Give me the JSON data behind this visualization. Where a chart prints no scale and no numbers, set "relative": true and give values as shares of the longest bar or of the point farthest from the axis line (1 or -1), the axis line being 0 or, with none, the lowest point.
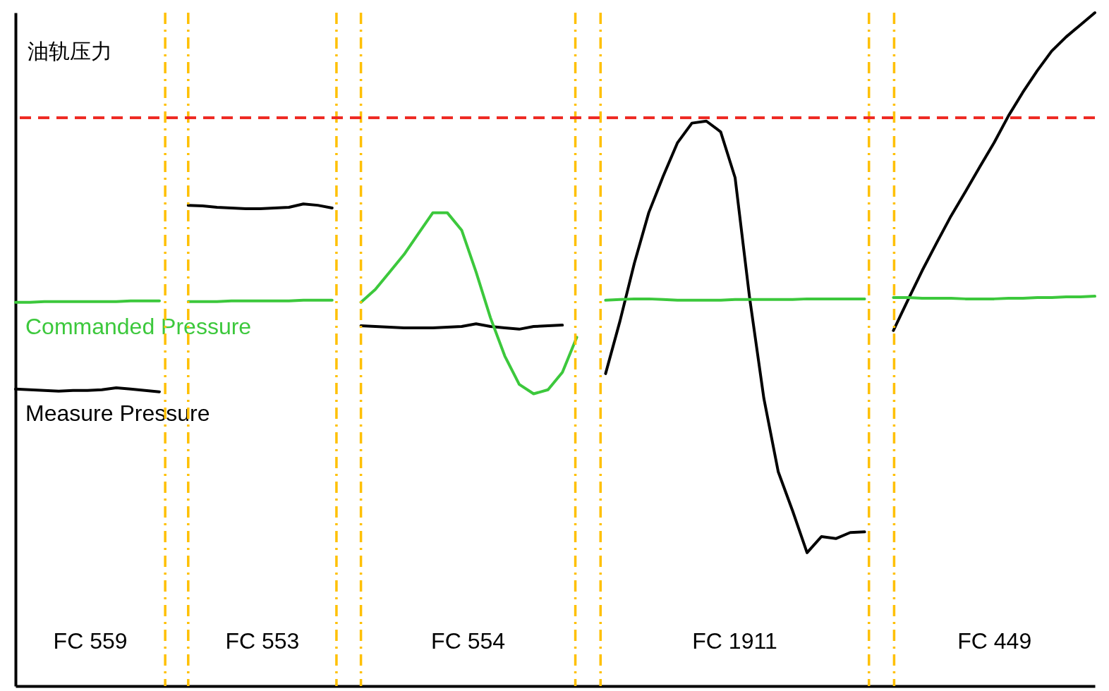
{
  "chart_data": {
    "type": "line",
    "relative": true,
    "ylabel": "油轨压力",
    "grid": "x",
    "legend": false,
    "categories": [
      null,
      null,
      null,
      null,
      null,
      null,
      null,
      null,
      null,
      null,
      null,
      null,
      null,
      null,
      null,
      null,
      null,
      null,
      null,
      null,
      null,
      null,
      null,
      null,
      null,
      null,
      null,
      null,
      null,
      null,
      null,
      null,
      null,
      null,
      null,
      null,
      null,
      null,
      null,
      null,
      null,
      null,
      null,
      null,
      null,
      null,
      null,
      null,
      null,
      null,
      null,
      null,
      null,
      null,
      null,
      null,
      null,
      null,
      null,
      null,
      null,
      null,
      null,
      null,
      null,
      null,
      null,
      null,
      null,
      null,
      null,
      null,
      null,
      null,
      null,
      null
    ],
    "series": [
      {
        "name": "Measure Pressure",
        "color": "#000000",
        "values": [
          0.441,
          0.44,
          0.439,
          0.438,
          0.439,
          0.439,
          0.44,
          0.443,
          0.441,
          0.439,
          0.437,
          null,
          0.714,
          0.713,
          0.711,
          0.71,
          0.709,
          0.709,
          0.71,
          0.711,
          0.716,
          0.714,
          0.71,
          null,
          0.535,
          0.534,
          0.533,
          0.532,
          0.532,
          0.532,
          0.533,
          0.534,
          0.538,
          0.534,
          0.532,
          0.53,
          0.534,
          0.535,
          0.536,
          null,
          null,
          0.464,
          0.542,
          0.628,
          0.703,
          0.757,
          0.807,
          0.836,
          0.839,
          0.823,
          0.755,
          0.578,
          0.427,
          0.318,
          0.26,
          0.198,
          0.222,
          0.219,
          0.228,
          0.229,
          null,
          0.528,
          0.573,
          0.617,
          0.658,
          0.698,
          0.734,
          0.771,
          0.807,
          0.847,
          0.882,
          0.914,
          0.943,
          0.964,
          0.982,
          1
        ]
      },
      {
        "name": "Commanded Pressure",
        "color": "#3cc83c",
        "values": [
          0.57,
          0.57,
          0.571,
          0.571,
          0.571,
          0.571,
          0.571,
          0.571,
          0.572,
          0.572,
          0.572,
          null,
          0.571,
          0.571,
          0.571,
          0.572,
          0.572,
          0.572,
          0.572,
          0.572,
          0.573,
          0.573,
          0.573,
          null,
          0.57,
          0.589,
          0.615,
          0.641,
          0.672,
          0.703,
          0.703,
          0.677,
          0.615,
          0.547,
          0.49,
          0.448,
          0.434,
          0.44,
          0.466,
          0.518,
          null,
          0.573,
          0.574,
          0.575,
          0.575,
          0.574,
          0.573,
          0.573,
          0.573,
          0.573,
          0.574,
          0.574,
          0.574,
          0.574,
          0.574,
          0.575,
          0.575,
          0.575,
          0.575,
          0.575,
          null,
          0.577,
          0.577,
          0.576,
          0.576,
          0.576,
          0.575,
          0.575,
          0.575,
          0.576,
          0.576,
          0.577,
          0.577,
          0.578,
          0.578,
          0.579
        ]
      }
    ],
    "ref_lines": [
      {
        "axis": "y",
        "value": 0.844,
        "color": "#ee2b24",
        "line_style": "dashed"
      }
    ],
    "annotations": [
      "FC 559",
      "FC 553",
      "FC 554",
      "FC 1911",
      "FC 449"
    ]
  }
}
